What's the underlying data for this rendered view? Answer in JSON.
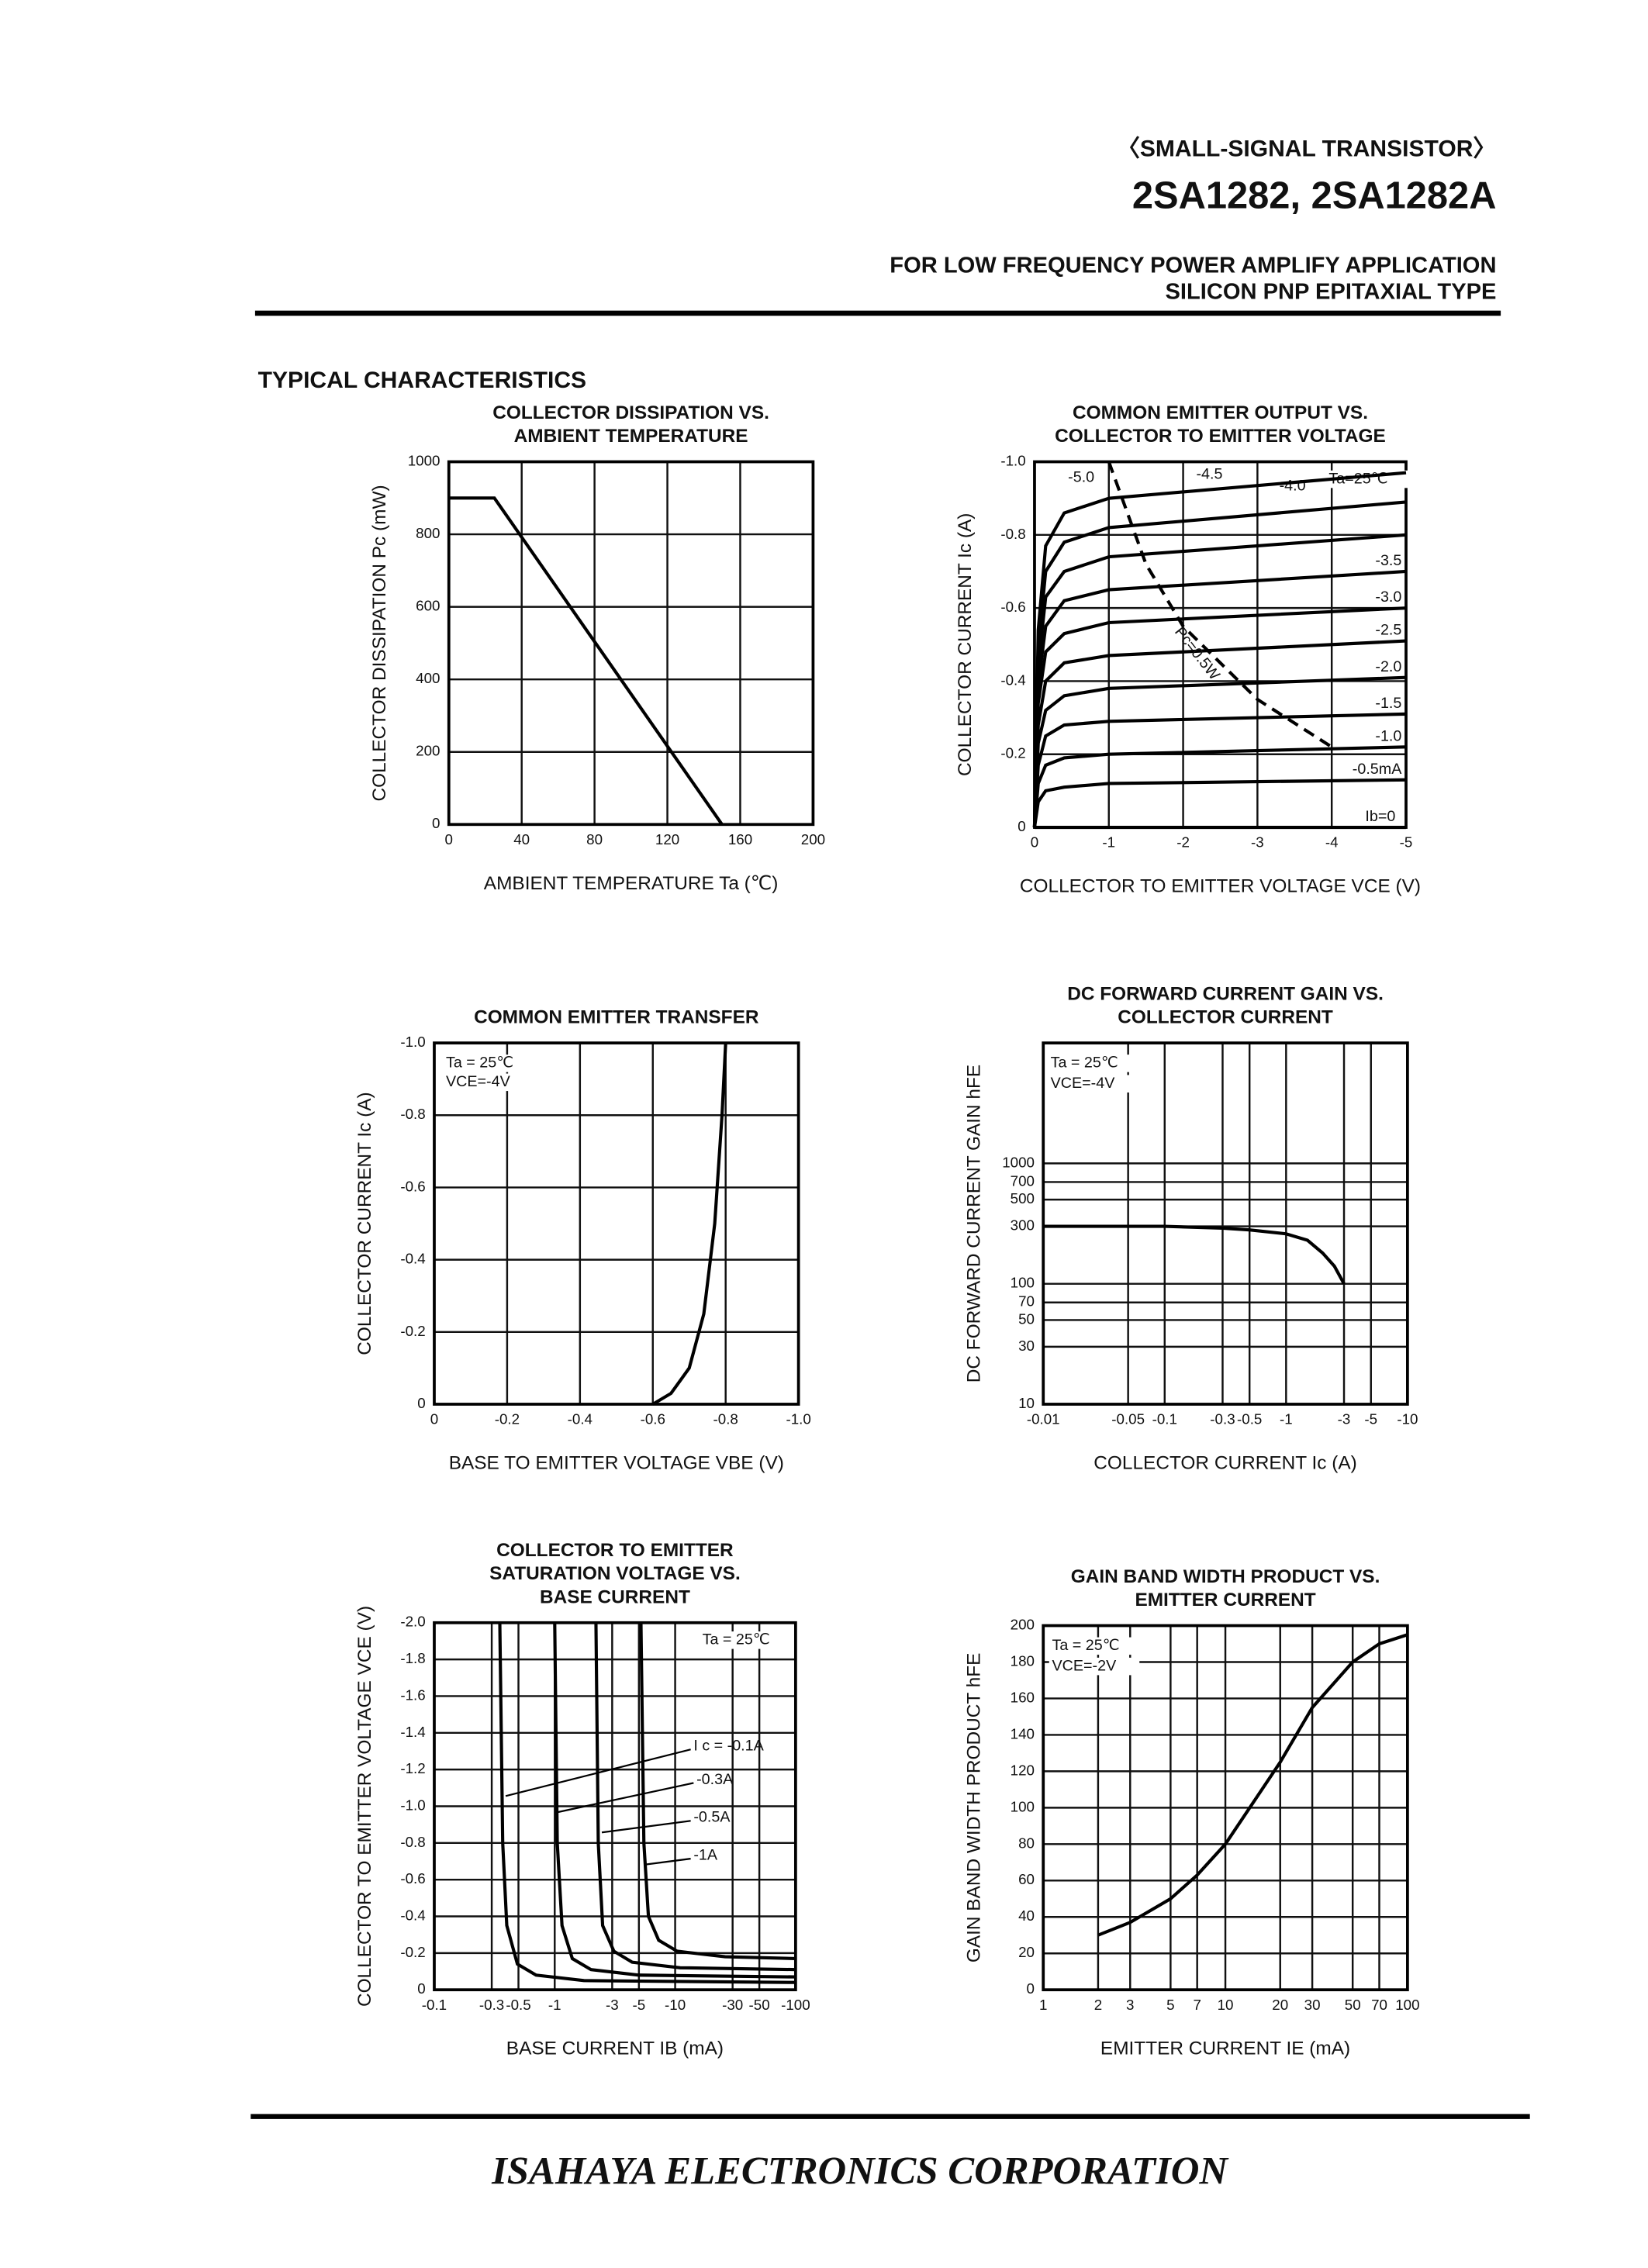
{
  "header": {
    "series": "〈SMALL-SIGNAL TRANSISTOR〉",
    "part": "2SA1282, 2SA1282A",
    "application": "FOR LOW FREQUENCY POWER AMPLIFY APPLICATION",
    "type": "SILICON PNP EPITAXIAL TYPE"
  },
  "section": "TYPICAL CHARACTERISTICS",
  "footer": "ISAHAYA  ELECTRONICS  CORPORATION",
  "chart_data": [
    {
      "type": "line",
      "title": [
        "COLLECTOR DISSIPATION VS.",
        "AMBIENT TEMPERATURE"
      ],
      "x_label": "AMBIENT TEMPERATURE  Ta (℃)",
      "y_label": "COLLECTOR DISSIPATION  Pc (mW)",
      "xlim": [
        0,
        200
      ],
      "xticks": [
        0,
        40,
        80,
        120,
        160,
        200
      ],
      "ylim": [
        0,
        1000
      ],
      "yticks": [
        0,
        200,
        400,
        600,
        800,
        1000
      ],
      "grid": true,
      "series": [
        {
          "x": [
            0,
            25,
            150
          ],
          "values": [
            900,
            900,
            0
          ]
        }
      ]
    },
    {
      "type": "line",
      "title": [
        "COMMON EMITTER OUTPUT VS.",
        "COLLECTOR TO EMITTER VOLTAGE"
      ],
      "x_label": "COLLECTOR TO EMITTER VOLTAGE  VCE (V)",
      "y_label": "COLLECTOR CURRENT  Ic (A)",
      "xlim": [
        0,
        -5
      ],
      "xticks": [
        0,
        -1,
        -2,
        -3,
        -4,
        -5
      ],
      "ylim": [
        0,
        -1
      ],
      "yticks": [
        0,
        -0.2,
        -0.4,
        -0.6,
        -0.8,
        {
          "value": -1,
          "label": "-1.0"
        }
      ],
      "grid": true,
      "annotations": [
        "Ta=25℃"
      ],
      "series": [
        {
          "name": "Ib=0",
          "x": [
            0,
            -5
          ],
          "values": [
            0,
            0
          ]
        },
        {
          "name": "-0.5mA",
          "x": [
            0,
            -0.05,
            -0.15,
            -0.4,
            -1,
            -5
          ],
          "values": [
            0,
            -0.07,
            -0.1,
            -0.11,
            -0.12,
            -0.13
          ]
        },
        {
          "name": "-1.0",
          "x": [
            0,
            -0.05,
            -0.15,
            -0.4,
            -1,
            -5
          ],
          "values": [
            0,
            -0.12,
            -0.17,
            -0.19,
            -0.2,
            -0.22
          ]
        },
        {
          "name": "-1.5",
          "x": [
            0,
            -0.05,
            -0.15,
            -0.4,
            -1,
            -5
          ],
          "values": [
            0,
            -0.17,
            -0.25,
            -0.28,
            -0.29,
            -0.31
          ]
        },
        {
          "name": "-2.0",
          "x": [
            0,
            -0.05,
            -0.15,
            -0.4,
            -1,
            -5
          ],
          "values": [
            0,
            -0.23,
            -0.32,
            -0.36,
            -0.38,
            -0.41
          ]
        },
        {
          "name": "-2.5",
          "x": [
            0,
            -0.05,
            -0.15,
            -0.4,
            -1,
            -5
          ],
          "values": [
            0,
            -0.28,
            -0.4,
            -0.45,
            -0.47,
            -0.51
          ]
        },
        {
          "name": "-3.0",
          "x": [
            0,
            -0.05,
            -0.15,
            -0.4,
            -1,
            -5
          ],
          "values": [
            0,
            -0.34,
            -0.48,
            -0.53,
            -0.56,
            -0.6
          ]
        },
        {
          "name": "-3.5",
          "x": [
            0,
            -0.05,
            -0.15,
            -0.4,
            -1,
            -5
          ],
          "values": [
            0,
            -0.39,
            -0.55,
            -0.62,
            -0.65,
            -0.7
          ]
        },
        {
          "name": "-4.0",
          "x": [
            0,
            -0.05,
            -0.15,
            -0.4,
            -1,
            -5
          ],
          "values": [
            0,
            -0.44,
            -0.63,
            -0.7,
            -0.74,
            -0.8
          ]
        },
        {
          "name": "-4.5",
          "x": [
            0,
            -0.05,
            -0.15,
            -0.4,
            -1,
            -5
          ],
          "values": [
            0,
            -0.49,
            -0.7,
            -0.78,
            -0.82,
            -0.89
          ]
        },
        {
          "name": "-5.0",
          "x": [
            0,
            -0.05,
            -0.15,
            -0.4,
            -1,
            -5
          ],
          "values": [
            0,
            -0.54,
            -0.77,
            -0.86,
            -0.9,
            -0.97
          ]
        },
        {
          "name": "Pc=0.5W",
          "dashed": true,
          "x": [
            -1,
            -1.5,
            -2,
            -2.5,
            -3,
            -4
          ],
          "values": [
            -1,
            -0.72,
            -0.55,
            -0.45,
            -0.35,
            -0.22
          ]
        }
      ]
    },
    {
      "type": "line",
      "title": [
        "COMMON EMITTER TRANSFER"
      ],
      "x_label": "BASE TO EMITTER VOLTAGE  VBE (V)",
      "y_label": "COLLECTOR CURRENT  Ic (A)",
      "xlim": [
        0,
        -1
      ],
      "xticks": [
        0,
        -0.2,
        -0.4,
        -0.6,
        -0.8,
        {
          "value": -1,
          "label": "-1.0"
        }
      ],
      "ylim": [
        0,
        -1
      ],
      "yticks": [
        0,
        -0.2,
        -0.4,
        -0.6,
        -0.8,
        {
          "value": -1,
          "label": "-1.0"
        }
      ],
      "grid": true,
      "annotations": [
        "Ta = 25℃",
        "VCE=-4V"
      ],
      "series": [
        {
          "x": [
            -0.6,
            -0.65,
            -0.7,
            -0.74,
            -0.77,
            -0.79,
            -0.8
          ],
          "values": [
            0,
            -0.03,
            -0.1,
            -0.25,
            -0.5,
            -0.8,
            -1
          ]
        }
      ]
    },
    {
      "type": "line",
      "title": [
        "DC FORWARD CURRENT GAIN VS.",
        "COLLECTOR CURRENT"
      ],
      "x_label": "COLLECTOR CURRENT  Ic (A)",
      "y_label": "DC FORWARD CURRENT GAIN  hFE",
      "xlog": true,
      "ylog": true,
      "xlim": [
        -0.01,
        -10
      ],
      "xticks": [
        -0.01,
        -0.05,
        -0.1,
        -0.3,
        -0.5,
        -1,
        -3,
        -5,
        -10
      ],
      "ylim": [
        10,
        10000
      ],
      "yticks": [
        10,
        30,
        50,
        70,
        100,
        300,
        500,
        700,
        1000
      ],
      "grid": true,
      "annotations": [
        "Ta = 25℃",
        "VCE=-4V"
      ],
      "series": [
        {
          "x": [
            -0.01,
            -0.1,
            -0.3,
            -0.5,
            -1,
            -1.5,
            -2,
            -2.5,
            -3
          ],
          "values": [
            300,
            300,
            290,
            280,
            260,
            230,
            180,
            140,
            100
          ]
        }
      ]
    },
    {
      "type": "line",
      "title": [
        "COLLECTOR TO EMITTER",
        "SATURATION VOLTAGE VS.",
        "BASE CURRENT"
      ],
      "x_label": "BASE CURRENT  IB (mA)",
      "y_label": "COLLECTOR TO EMITTER VOLTAGE  VCE (V)",
      "xlog": true,
      "xlim": [
        -0.1,
        -100
      ],
      "xticks": [
        -0.1,
        -0.3,
        -0.5,
        -1,
        -3,
        -5,
        -10,
        -30,
        -50,
        -100
      ],
      "ylim": [
        0,
        -2
      ],
      "yticks": [
        0,
        -0.2,
        -0.4,
        -0.6,
        -0.8,
        {
          "value": -1,
          "label": "-1.0"
        },
        -1.2,
        -1.4,
        -1.6,
        -1.8,
        {
          "value": -2,
          "label": "-2.0"
        }
      ],
      "grid": true,
      "annotations": [
        "Ta = 25℃"
      ],
      "series": [
        {
          "name": "I c = -0.1A",
          "x": [
            -0.35,
            -0.37,
            -0.4,
            -0.49,
            -0.7,
            -1.75,
            -100
          ],
          "values": [
            -2,
            -0.8,
            -0.35,
            -0.14,
            -0.08,
            -0.05,
            -0.04
          ]
        },
        {
          "name": "-0.3A",
          "x": [
            -1,
            -1.05,
            -1.15,
            -1.4,
            -2,
            -5,
            -100
          ],
          "values": [
            -2,
            -0.8,
            -0.35,
            -0.17,
            -0.11,
            -0.08,
            -0.07
          ]
        },
        {
          "name": "-0.5A",
          "x": [
            -2.2,
            -2.3,
            -2.5,
            -3.1,
            -4.4,
            -11,
            -100
          ],
          "values": [
            -2,
            -0.8,
            -0.35,
            -0.21,
            -0.15,
            -0.12,
            -0.11
          ]
        },
        {
          "name": "-1A",
          "x": [
            -5.2,
            -5.5,
            -6,
            -7.3,
            -10.4,
            -26,
            -100
          ],
          "values": [
            -2,
            -0.8,
            -0.4,
            -0.27,
            -0.21,
            -0.18,
            -0.17
          ]
        }
      ]
    },
    {
      "type": "line",
      "title": [
        "GAIN BAND WIDTH PRODUCT VS.",
        "EMITTER CURRENT"
      ],
      "x_label": "EMITTER CURRENT  IE (mA)",
      "y_label": "GAIN BAND WIDTH PRODUCT  hFE",
      "xlog": true,
      "xlim": [
        1,
        100
      ],
      "xticks": [
        1,
        2,
        3,
        5,
        7,
        10,
        20,
        30,
        50,
        70,
        100
      ],
      "ylim": [
        0,
        200
      ],
      "yticks": [
        0,
        20,
        40,
        60,
        80,
        100,
        120,
        140,
        160,
        180,
        200
      ],
      "grid": true,
      "annotations": [
        "Ta = 25℃",
        "VCE=-2V"
      ],
      "series": [
        {
          "x": [
            2,
            3,
            5,
            7,
            10,
            20,
            30,
            50,
            70,
            100
          ],
          "values": [
            30,
            37,
            50,
            63,
            80,
            125,
            155,
            180,
            190,
            195
          ]
        }
      ]
    }
  ]
}
